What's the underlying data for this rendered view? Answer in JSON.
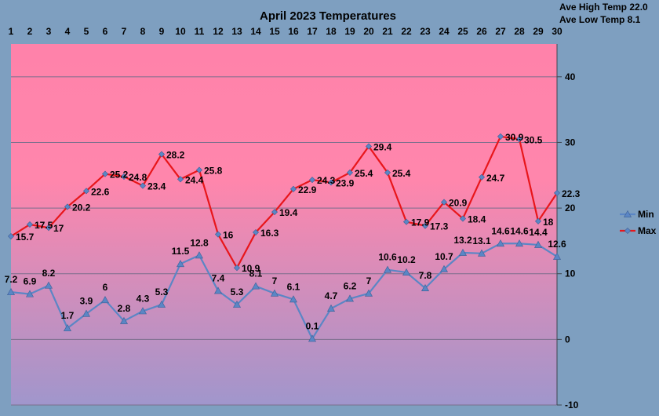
{
  "chart_data": {
    "type": "line",
    "title": "April 2023 Temperatures",
    "summary": [
      "Ave High Temp 22.0",
      "Ave Low Temp 8.1"
    ],
    "x": [
      "1",
      "2",
      "3",
      "4",
      "5",
      "6",
      "7",
      "8",
      "9",
      "10",
      "11",
      "12",
      "13",
      "14",
      "15",
      "16",
      "17",
      "18",
      "19",
      "20",
      "21",
      "22",
      "23",
      "24",
      "25",
      "26",
      "27",
      "28",
      "29",
      "30"
    ],
    "x_axis_position": "top",
    "y_axis_position": "right",
    "ylim": [
      -10,
      45
    ],
    "yticks": [
      -10,
      0,
      10,
      20,
      30,
      40
    ],
    "grid": "horizontal",
    "legend": "right",
    "series": [
      {
        "name": "Min",
        "color": "#5b86c5",
        "marker": "triangle",
        "values": [
          7.2,
          6.9,
          8.2,
          1.7,
          3.9,
          6,
          2.8,
          4.3,
          5.3,
          11.5,
          12.8,
          7.4,
          5.3,
          8.1,
          7,
          6.1,
          0.1,
          4.7,
          6.2,
          7,
          10.6,
          10.2,
          7.8,
          10.7,
          13.2,
          13.1,
          14.6,
          14.6,
          14.4,
          12.6
        ]
      },
      {
        "name": "Max",
        "color": "#e8161b",
        "marker": "diamond",
        "values": [
          15.7,
          17.5,
          17,
          20.2,
          22.6,
          25.2,
          24.8,
          23.4,
          28.2,
          24.4,
          25.8,
          16,
          10.9,
          16.3,
          19.4,
          22.9,
          24.3,
          23.9,
          25.4,
          29.4,
          25.4,
          17.9,
          17.3,
          20.9,
          18.4,
          24.7,
          30.9,
          30.5,
          18,
          22.3
        ]
      }
    ],
    "background_gradient": [
      "#ff82aa",
      "#a096cc"
    ]
  }
}
